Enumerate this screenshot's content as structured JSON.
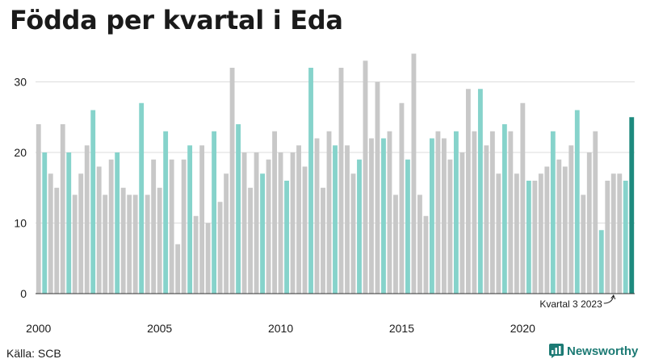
{
  "title": "Födda per kvartal i Eda",
  "source": "Källa: SCB",
  "brand": {
    "name": "Newsworthy"
  },
  "chart_data": {
    "type": "bar",
    "title": "Födda per kvartal i Eda",
    "xlabel": "",
    "ylabel": "",
    "ylim": [
      0,
      35
    ],
    "yticks": [
      0,
      10,
      20,
      30
    ],
    "xtick_labels": [
      "2000",
      "2005",
      "2010",
      "2015",
      "2020"
    ],
    "grid": true,
    "legend": "none",
    "colors": {
      "default": "#c8c8c8",
      "q2": "#86d3cb",
      "last": "#1e8a7e"
    },
    "annotation": {
      "text": "Kvartal 3 2023",
      "target_index": 95
    },
    "start": {
      "year": 2000,
      "quarter": 1
    },
    "values": [
      24,
      20,
      17,
      15,
      24,
      20,
      14,
      17,
      21,
      26,
      18,
      14,
      19,
      20,
      15,
      14,
      14,
      27,
      14,
      19,
      15,
      23,
      19,
      7,
      19,
      21,
      11,
      21,
      10,
      23,
      13,
      17,
      32,
      24,
      20,
      15,
      20,
      17,
      19,
      23,
      20,
      16,
      20,
      21,
      18,
      32,
      22,
      15,
      23,
      21,
      32,
      21,
      17,
      19,
      33,
      22,
      30,
      22,
      23,
      14,
      27,
      19,
      34,
      14,
      11,
      22,
      23,
      22,
      19,
      23,
      20,
      29,
      23,
      29,
      21,
      23,
      17,
      24,
      23,
      17,
      27,
      16,
      16,
      17,
      18,
      23,
      19,
      18,
      21,
      26,
      14,
      20,
      23,
      9,
      16,
      17,
      17,
      16,
      25
    ]
  }
}
